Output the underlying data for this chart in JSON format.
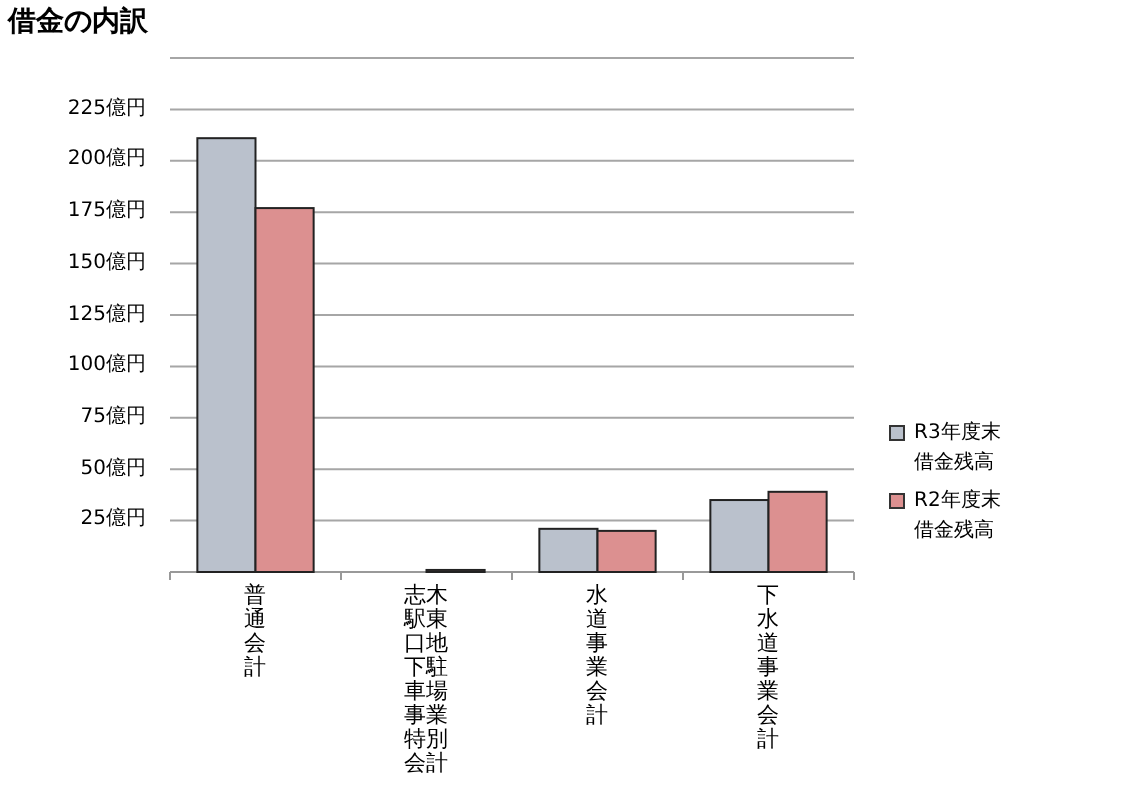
{
  "chart_data": {
    "type": "bar",
    "title": "借金の内訳",
    "categories": [
      "普通会計",
      "志木駅東口地下駐車場事業特別会計",
      "水道事業会計",
      "下水道事業会計"
    ],
    "series": [
      {
        "name": "R3年度末借金残高",
        "color": "#bac1cc",
        "values": [
          211,
          0,
          21,
          35
        ]
      },
      {
        "name": "R2年度末借金残高",
        "color": "#dc9090",
        "values": [
          177,
          1,
          20,
          39
        ]
      }
    ],
    "ylim": [
      0,
      250
    ],
    "yticks": [
      {
        "value": 0,
        "label": null
      },
      {
        "value": 25,
        "label": "25億円"
      },
      {
        "value": 50,
        "label": "50億円"
      },
      {
        "value": 75,
        "label": "75億円"
      },
      {
        "value": 100,
        "label": "100億円"
      },
      {
        "value": 125,
        "label": "125億円"
      },
      {
        "value": 150,
        "label": "150億円"
      },
      {
        "value": 175,
        "label": "175億円"
      },
      {
        "value": 200,
        "label": "200億円"
      },
      {
        "value": 225,
        "label": "225億円"
      },
      {
        "value": 250,
        "label": null
      }
    ],
    "grid": "y",
    "legend": "right"
  }
}
